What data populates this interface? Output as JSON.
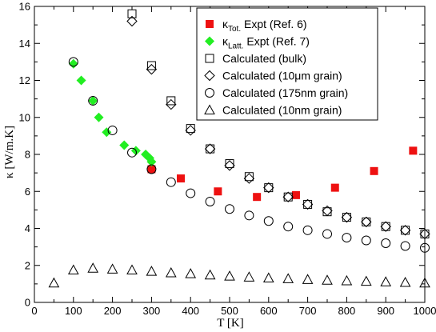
{
  "chart_data": {
    "type": "scatter",
    "xlabel": "T [K]",
    "ylabel": "κ [W/m.K]",
    "xlim": [
      0,
      1000
    ],
    "ylim": [
      0,
      16
    ],
    "xticks": [
      "0",
      "100",
      "200",
      "300",
      "400",
      "500",
      "600",
      "700",
      "800",
      "900",
      "1000"
    ],
    "yticks": [
      "0",
      "2",
      "4",
      "6",
      "8",
      "10",
      "12",
      "14",
      "16"
    ],
    "grid": false,
    "legend_position": "top-right",
    "series": [
      {
        "name_main": "κ",
        "name_sub": "Tot.",
        "name_rest": " Expt (Ref. 6)",
        "marker": "square-filled",
        "color": "#ee1111",
        "x": [
          300,
          375,
          470,
          570,
          670,
          770,
          870,
          970
        ],
        "y": [
          7.2,
          6.7,
          6.0,
          5.7,
          5.8,
          6.2,
          7.1,
          8.2
        ]
      },
      {
        "name_main": "κ",
        "name_sub": "Latt.",
        "name_rest": " Expt (Ref. 7)",
        "marker": "diamond-filled",
        "color": "#22ee22",
        "x": [
          100,
          120,
          150,
          165,
          185,
          230,
          260,
          285,
          295,
          300
        ],
        "y": [
          12.9,
          12.0,
          10.9,
          10.0,
          9.2,
          8.5,
          8.2,
          8.0,
          7.8,
          7.6
        ]
      },
      {
        "name_main": "Calculated (bulk)",
        "marker": "square-open",
        "color": "#000000",
        "x": [
          250,
          300,
          350,
          400,
          450,
          500,
          550,
          600,
          650,
          700,
          750,
          800,
          850,
          900,
          950,
          1000
        ],
        "y": [
          15.6,
          12.8,
          10.9,
          9.4,
          8.3,
          7.5,
          6.8,
          6.2,
          5.7,
          5.3,
          4.9,
          4.6,
          4.35,
          4.1,
          3.9,
          3.7
        ]
      },
      {
        "name_main": "Calculated (10μm grain)",
        "marker": "diamond-open",
        "color": "#000000",
        "x": [
          250,
          300,
          350,
          400,
          450,
          500,
          550,
          600,
          650,
          700,
          750,
          800,
          850,
          900,
          950,
          1000
        ],
        "y": [
          15.2,
          12.6,
          10.7,
          9.3,
          8.3,
          7.4,
          6.7,
          6.2,
          5.7,
          5.3,
          4.95,
          4.6,
          4.35,
          4.1,
          3.9,
          3.7
        ]
      },
      {
        "name_main": "Calculated (175nm grain)",
        "marker": "circle-open",
        "color": "#000000",
        "x": [
          100,
          150,
          200,
          250,
          300,
          350,
          400,
          450,
          500,
          550,
          600,
          650,
          700,
          750,
          800,
          850,
          900,
          950,
          1000
        ],
        "y": [
          13.0,
          10.9,
          9.3,
          8.1,
          7.2,
          6.5,
          5.9,
          5.45,
          5.05,
          4.7,
          4.4,
          4.1,
          3.9,
          3.7,
          3.5,
          3.35,
          3.2,
          3.05,
          2.95
        ]
      },
      {
        "name_main": "Calculated (10nm grain)",
        "marker": "triangle-open",
        "color": "#000000",
        "x": [
          50,
          100,
          150,
          200,
          250,
          300,
          350,
          400,
          450,
          500,
          550,
          600,
          650,
          700,
          750,
          800,
          850,
          900,
          950,
          1000
        ],
        "y": [
          1.05,
          1.75,
          1.85,
          1.8,
          1.75,
          1.68,
          1.6,
          1.55,
          1.48,
          1.42,
          1.37,
          1.32,
          1.28,
          1.24,
          1.2,
          1.17,
          1.14,
          1.11,
          1.08,
          1.05
        ]
      }
    ]
  }
}
